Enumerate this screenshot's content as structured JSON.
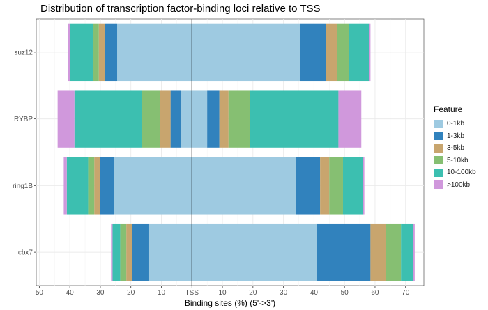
{
  "chart_data": {
    "type": "bar",
    "orientation": "horizontal-diverging",
    "title": "Distribution of transcription factor-binding loci relative to TSS",
    "xlabel": "Binding sites (%) (5'->3')",
    "ylabel": "",
    "xlim": [
      -51,
      76
    ],
    "x_ticks": [
      -50,
      -40,
      -30,
      -20,
      -10,
      0,
      10,
      20,
      30,
      40,
      50,
      60,
      70
    ],
    "x_tick_labels": [
      "50",
      "40",
      "30",
      "20",
      "10",
      "TSS",
      "10",
      "20",
      "30",
      "40",
      "50",
      "60",
      "70"
    ],
    "categories": [
      "suz12",
      "RYBP",
      "ring1B",
      "cbx7"
    ],
    "grid": true,
    "legend_position": "right",
    "legend_title": "Feature",
    "series": [
      {
        "name": "0-1kb",
        "color": "#9ecae1",
        "upstream": [
          24.5,
          3.5,
          25.5,
          14
        ],
        "downstream": [
          35.5,
          5,
          34,
          41
        ]
      },
      {
        "name": "1-3kb",
        "color": "#3182bd",
        "upstream": [
          4,
          3.5,
          4.5,
          5.5
        ],
        "downstream": [
          8.5,
          4,
          8,
          17.5
        ]
      },
      {
        "name": "3-5kb",
        "color": "#c8a56e",
        "upstream": [
          2,
          3.5,
          2,
          2
        ],
        "downstream": [
          3.5,
          3,
          3,
          5
        ]
      },
      {
        "name": "5-10kb",
        "color": "#86bf72",
        "upstream": [
          2,
          6,
          2,
          2
        ],
        "downstream": [
          4,
          7,
          4.5,
          5
        ]
      },
      {
        "name": "10-100kb",
        "color": "#3cbfb0",
        "upstream": [
          7.5,
          22,
          7,
          2.5
        ],
        "downstream": [
          6.5,
          29,
          6.5,
          4
        ]
      },
      {
        "name": ">100kb",
        "color": "#d098dc",
        "upstream": [
          0.5,
          5.5,
          1,
          0.5
        ],
        "downstream": [
          0.5,
          7.5,
          0.5,
          0.5
        ]
      }
    ]
  }
}
